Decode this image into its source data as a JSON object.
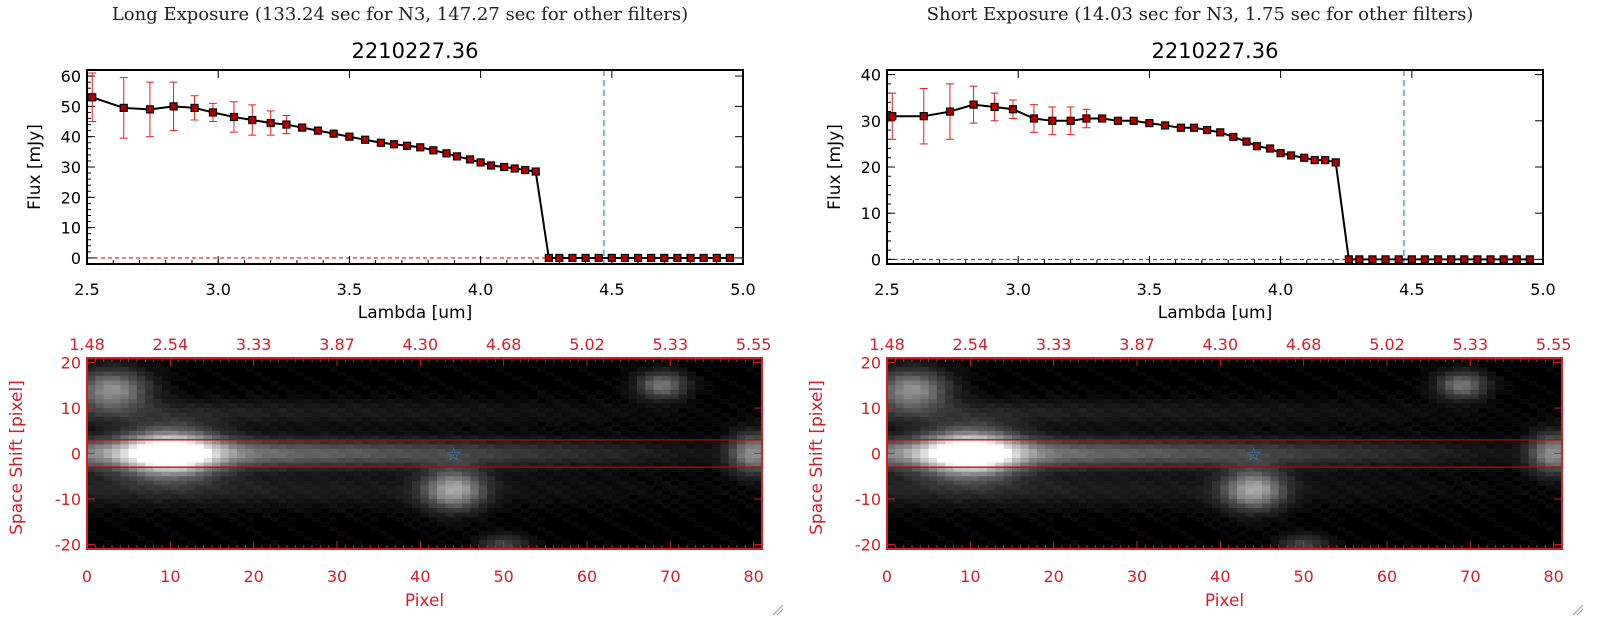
{
  "panels": [
    {
      "title": "Long Exposure (133.24 sec for N3, 147.27 sec for other filters)",
      "spectrum": {
        "object_id": "2210227.36",
        "xlabel": "Lambda [um]",
        "ylabel": "Flux [mJy]",
        "xticks": [
          "2.5",
          "3.0",
          "3.5",
          "4.0",
          "4.5",
          "5.0"
        ],
        "yticks": [
          "0",
          "10",
          "20",
          "30",
          "40",
          "50",
          "60"
        ]
      },
      "image": {
        "xlabel": "Pixel",
        "ylabel": "Space Shift [pixel]",
        "xticks": [
          "0",
          "10",
          "20",
          "30",
          "40",
          "50",
          "60",
          "70",
          "80"
        ],
        "yticks": [
          "-20",
          "-10",
          "0",
          "10",
          "20"
        ],
        "top_ticks": [
          "1.48",
          "2.54",
          "3.33",
          "3.87",
          "4.30",
          "4.68",
          "5.02",
          "5.33",
          "5.55"
        ]
      }
    },
    {
      "title": "Short Exposure (14.03 sec for N3, 1.75 sec for other filters)",
      "spectrum": {
        "object_id": "2210227.36",
        "xlabel": "Lambda [um]",
        "ylabel": "Flux [mJy]",
        "xticks": [
          "2.5",
          "3.0",
          "3.5",
          "4.0",
          "4.5",
          "5.0"
        ],
        "yticks": [
          "0",
          "10",
          "20",
          "30",
          "40"
        ]
      },
      "image": {
        "xlabel": "Pixel",
        "ylabel": "Space Shift [pixel]",
        "xticks": [
          "0",
          "10",
          "20",
          "30",
          "40",
          "50",
          "60",
          "70",
          "80"
        ],
        "yticks": [
          "-20",
          "-10",
          "0",
          "10",
          "20"
        ],
        "top_ticks": [
          "1.48",
          "2.54",
          "3.33",
          "3.87",
          "4.30",
          "4.68",
          "5.02",
          "5.33",
          "5.55"
        ]
      }
    }
  ],
  "colors": {
    "axis_black": "#000000",
    "axis_red": "#d0202a",
    "marker_fill": "#b00000",
    "errorbar": "#e02020",
    "reference_line": "#2a7fff",
    "zero_line": "#d00000",
    "aperture_line": "#c00000",
    "star_marker": "#3a7fd0"
  },
  "chart_data": [
    {
      "type": "line",
      "panel": 0,
      "title": "2210227.36",
      "xlabel": "Lambda [um]",
      "ylabel": "Flux [mJy]",
      "xlim": [
        2.5,
        5.0
      ],
      "ylim": [
        -2,
        62
      ],
      "reference_x": 4.47,
      "series": [
        {
          "x": [
            2.52,
            2.64,
            2.74,
            2.83,
            2.91,
            2.98,
            3.06,
            3.13,
            3.2,
            3.26,
            3.32,
            3.38,
            3.44,
            3.5,
            3.56,
            3.62,
            3.67,
            3.72,
            3.77,
            3.82,
            3.87,
            3.91,
            3.96,
            4.0,
            4.04,
            4.09,
            4.13,
            4.17,
            4.21,
            4.26,
            4.3,
            4.35,
            4.4,
            4.45,
            4.5,
            4.55,
            4.6,
            4.65,
            4.7,
            4.75,
            4.8,
            4.85,
            4.9,
            4.95
          ],
          "y": [
            53,
            49.5,
            49,
            50,
            49.5,
            48,
            46.5,
            45.5,
            44.5,
            44,
            43,
            42,
            41,
            40,
            39,
            38,
            37.5,
            37,
            36.5,
            35.5,
            34.5,
            33.5,
            32.5,
            31.5,
            30.5,
            30,
            29.5,
            29,
            28.5,
            0,
            0,
            0,
            0,
            0,
            0,
            0,
            0,
            0,
            0,
            0,
            0,
            0,
            0,
            0
          ],
          "err": [
            8,
            10,
            9,
            8,
            4,
            3,
            5,
            5,
            4,
            3,
            0,
            0,
            0,
            0,
            0,
            0,
            0,
            0,
            0,
            0,
            0,
            0,
            0,
            0,
            0,
            0,
            0,
            0,
            0,
            0,
            0,
            0,
            0,
            0,
            0,
            0,
            0,
            0,
            0,
            0,
            0,
            0,
            0,
            0
          ]
        }
      ]
    },
    {
      "type": "line",
      "panel": 1,
      "title": "2210227.36",
      "xlabel": "Lambda [um]",
      "ylabel": "Flux [mJy]",
      "xlim": [
        2.5,
        5.0
      ],
      "ylim": [
        -1,
        41
      ],
      "reference_x": 4.47,
      "series": [
        {
          "x": [
            2.52,
            2.64,
            2.74,
            2.83,
            2.91,
            2.98,
            3.06,
            3.13,
            3.2,
            3.26,
            3.32,
            3.38,
            3.44,
            3.5,
            3.56,
            3.62,
            3.67,
            3.72,
            3.77,
            3.82,
            3.87,
            3.91,
            3.96,
            4.0,
            4.04,
            4.09,
            4.13,
            4.17,
            4.21,
            4.26,
            4.3,
            4.35,
            4.4,
            4.45,
            4.5,
            4.55,
            4.6,
            4.65,
            4.7,
            4.75,
            4.8,
            4.85,
            4.9,
            4.95
          ],
          "y": [
            31,
            31,
            32,
            33.5,
            33,
            32.5,
            30.5,
            30,
            30,
            30.5,
            30.5,
            30,
            30,
            29.5,
            29,
            28.5,
            28.5,
            28,
            27.5,
            26.5,
            25.5,
            24.5,
            24,
            23,
            22.5,
            22,
            21.5,
            21.5,
            21,
            0,
            0,
            0,
            0,
            0,
            0,
            0,
            0,
            0,
            0,
            0,
            0,
            0,
            0,
            0
          ],
          "err": [
            5,
            6,
            6,
            4,
            3,
            2,
            3,
            3,
            3,
            2,
            0,
            0,
            0,
            0,
            0,
            0,
            0,
            0,
            0,
            0,
            0,
            0,
            0,
            0,
            0,
            0,
            0,
            0,
            0,
            0,
            0,
            0,
            0,
            0,
            0,
            0,
            0,
            0,
            0,
            0,
            0,
            0,
            0,
            0
          ]
        }
      ]
    },
    {
      "type": "heatmap",
      "panel": 0,
      "xlabel": "Pixel",
      "ylabel": "Space Shift [pixel]",
      "xlim": [
        0,
        81
      ],
      "ylim": [
        -21,
        21
      ],
      "aperture_y": [
        -3,
        3
      ],
      "marker": {
        "x": 44,
        "y": 0
      },
      "sources": [
        {
          "x": 10,
          "y": 0,
          "amp": 1.0,
          "sx": 4,
          "sy": 3.5
        },
        {
          "x": 3,
          "y": 14,
          "amp": 0.55,
          "sx": 3,
          "sy": 3
        },
        {
          "x": 44,
          "y": -8,
          "amp": 0.6,
          "sx": 2.5,
          "sy": 3
        },
        {
          "x": 69,
          "y": 15,
          "amp": 0.45,
          "sx": 2,
          "sy": 2
        },
        {
          "x": 80,
          "y": 0,
          "amp": 0.55,
          "sx": 2,
          "sy": 3
        },
        {
          "x": 50,
          "y": -20,
          "amp": 0.25,
          "sx": 2,
          "sy": 1.5
        }
      ]
    },
    {
      "type": "heatmap",
      "panel": 1,
      "xlabel": "Pixel",
      "ylabel": "Space Shift [pixel]",
      "xlim": [
        0,
        81
      ],
      "ylim": [
        -21,
        21
      ],
      "aperture_y": [
        -3,
        3
      ],
      "marker": {
        "x": 44,
        "y": 0
      },
      "sources": [
        {
          "x": 10,
          "y": 0,
          "amp": 1.0,
          "sx": 4,
          "sy": 3.5
        },
        {
          "x": 3,
          "y": 14,
          "amp": 0.55,
          "sx": 3,
          "sy": 3
        },
        {
          "x": 44,
          "y": -8,
          "amp": 0.6,
          "sx": 2.5,
          "sy": 3
        },
        {
          "x": 69,
          "y": 15,
          "amp": 0.45,
          "sx": 2,
          "sy": 2
        },
        {
          "x": 80,
          "y": 0,
          "amp": 0.55,
          "sx": 2,
          "sy": 3
        },
        {
          "x": 50,
          "y": -20,
          "amp": 0.25,
          "sx": 2,
          "sy": 1.5
        }
      ]
    }
  ]
}
